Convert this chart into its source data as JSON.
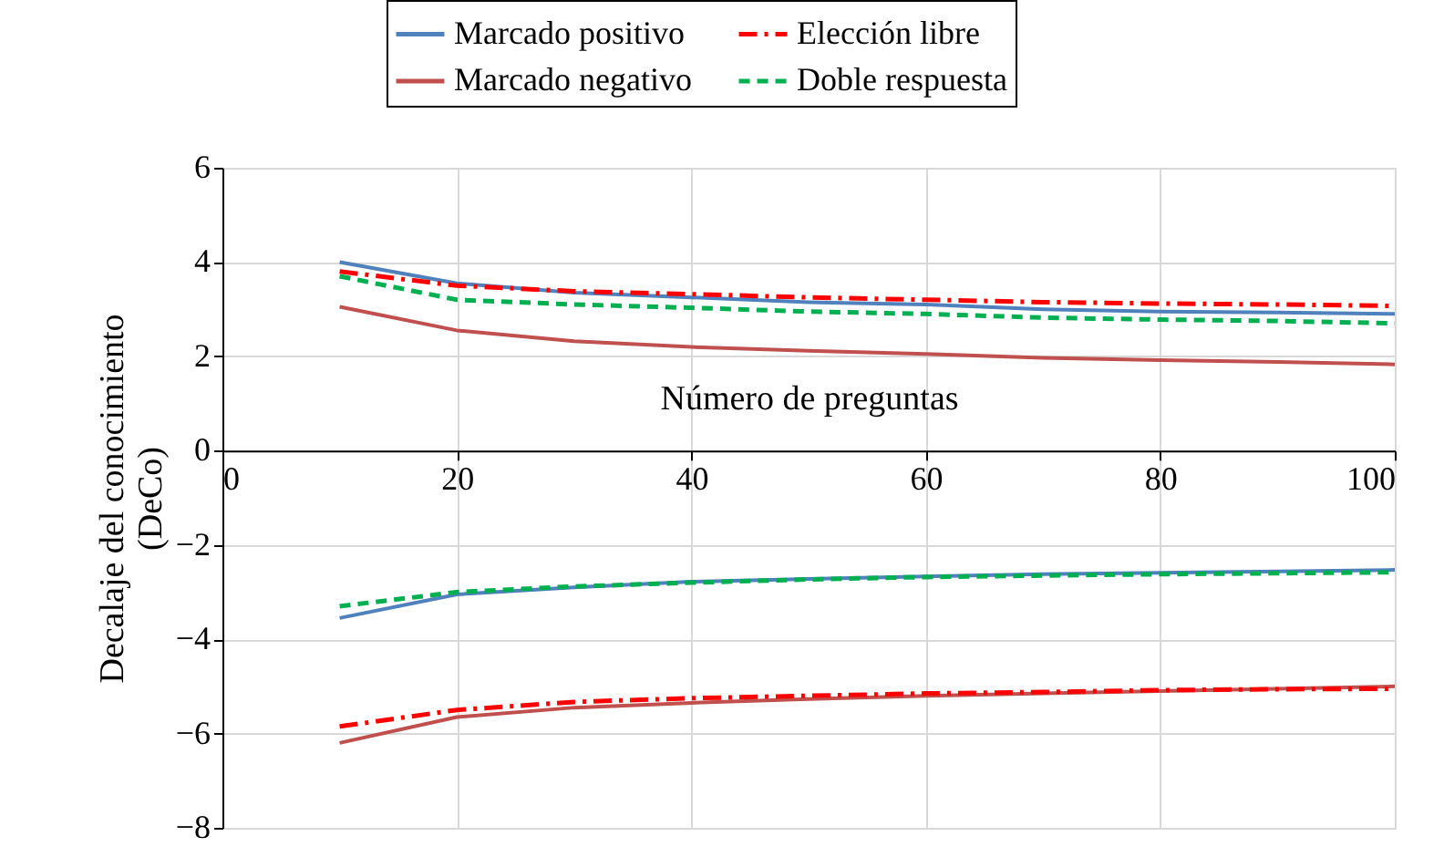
{
  "chart_data": {
    "type": "line",
    "xlabel": "Número de preguntas",
    "ylabel": "Decalaje del conocimiento\n(DeCo)",
    "xlim": [
      0,
      100
    ],
    "xticks": [
      0,
      20,
      40,
      60,
      80,
      100
    ],
    "ylim": [
      -8,
      6
    ],
    "yticks": [
      -8,
      -6,
      -4,
      -2,
      0,
      2,
      4,
      6
    ],
    "grid": true,
    "legend": "top",
    "x": [
      10,
      20,
      30,
      40,
      50,
      60,
      70,
      80,
      90,
      100
    ],
    "series": [
      {
        "name": "Marcado positivo",
        "color": "#4f81bd",
        "line_style": "solid",
        "values": [
          4.0,
          3.55,
          3.35,
          3.25,
          3.15,
          3.1,
          3.0,
          2.95,
          2.93,
          2.9
        ]
      },
      {
        "name": "Marcado negativo",
        "color": "#c0504d",
        "line_style": "solid",
        "values": [
          3.05,
          2.55,
          2.32,
          2.2,
          2.12,
          2.05,
          1.97,
          1.92,
          1.88,
          1.83
        ]
      },
      {
        "name": "Elección libre",
        "color": "#ff0000",
        "line_style": "dashdot",
        "values": [
          3.8,
          3.5,
          3.38,
          3.32,
          3.25,
          3.2,
          3.15,
          3.12,
          3.1,
          3.07
        ]
      },
      {
        "name": "Doble respuesta",
        "color": "#00b050",
        "line_style": "dashed",
        "values": [
          3.7,
          3.2,
          3.1,
          3.03,
          2.95,
          2.9,
          2.82,
          2.78,
          2.75,
          2.7
        ]
      },
      {
        "color": "#4f81bd",
        "line_style": "solid",
        "values": [
          -3.55,
          -3.05,
          -2.9,
          -2.78,
          -2.72,
          -2.67,
          -2.62,
          -2.59,
          -2.56,
          -2.53
        ]
      },
      {
        "color": "#c0504d",
        "line_style": "solid",
        "values": [
          -6.2,
          -5.65,
          -5.45,
          -5.35,
          -5.27,
          -5.2,
          -5.15,
          -5.1,
          -5.05,
          -5.0
        ]
      },
      {
        "color": "#ff0000",
        "line_style": "dashdot",
        "values": [
          -5.85,
          -5.5,
          -5.33,
          -5.25,
          -5.2,
          -5.15,
          -5.12,
          -5.08,
          -5.06,
          -5.05
        ]
      },
      {
        "color": "#00b050",
        "line_style": "dashed",
        "values": [
          -3.3,
          -3.0,
          -2.88,
          -2.8,
          -2.73,
          -2.68,
          -2.65,
          -2.62,
          -2.6,
          -2.58
        ]
      }
    ]
  }
}
